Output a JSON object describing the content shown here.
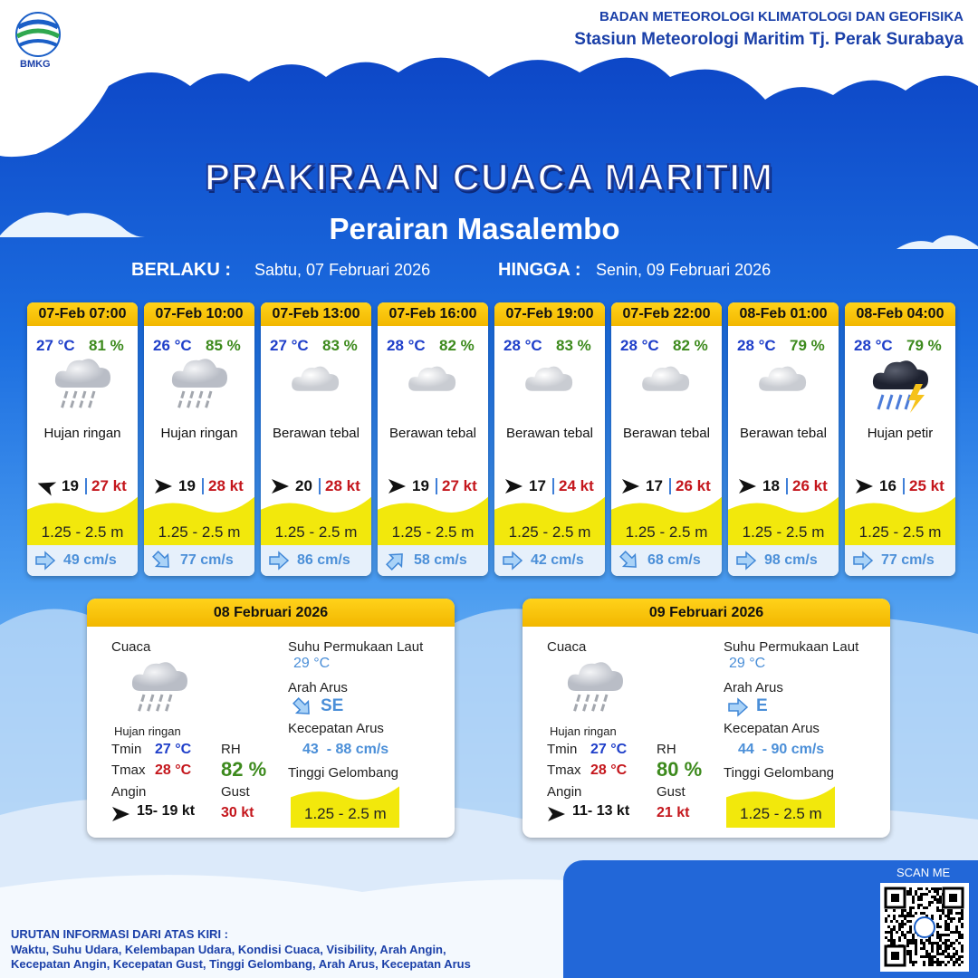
{
  "header": {
    "logo": "BMKG",
    "agency": "BADAN METEOROLOGI KLIMATOLOGI DAN GEOFISIKA",
    "station": "Stasiun Meteorologi Maritim Tj. Perak Surabaya"
  },
  "title": "PRAKIRAAN CUACA MARITIM",
  "subtitle": "Perairan Masalembo",
  "validity": {
    "from_label": "BERLAKU :",
    "from": "Sabtu, 07 Februari 2026",
    "to_label": "HINGGA :",
    "to": "Senin, 09 Februari 2026"
  },
  "forecasts": [
    {
      "time": "07-Feb 07:00",
      "temperature": "27 °C",
      "humidity": "81 %",
      "weather": "Hujan ringan",
      "wind": "19",
      "gust": "27 kt",
      "wave": "1.25 - 2.5 m",
      "current": "49 cm/s"
    },
    {
      "time": "07-Feb 10:00",
      "temperature": "26 °C",
      "humidity": "85 %",
      "weather": "Hujan ringan",
      "wind": "19",
      "gust": "28 kt",
      "wave": "1.25 - 2.5 m",
      "current": "77 cm/s"
    },
    {
      "time": "07-Feb 13:00",
      "temperature": "27 °C",
      "humidity": "83 %",
      "weather": "Berawan tebal",
      "wind": "20",
      "gust": "28 kt",
      "wave": "1.25 - 2.5 m",
      "current": "86 cm/s"
    },
    {
      "time": "07-Feb 16:00",
      "temperature": "28 °C",
      "humidity": "82 %",
      "weather": "Berawan tebal",
      "wind": "19",
      "gust": "27 kt",
      "wave": "1.25 - 2.5 m",
      "current": "58 cm/s"
    },
    {
      "time": "07-Feb 19:00",
      "temperature": "28 °C",
      "humidity": "83 %",
      "weather": "Berawan tebal",
      "wind": "17",
      "gust": "24 kt",
      "wave": "1.25 - 2.5 m",
      "current": "42 cm/s"
    },
    {
      "time": "07-Feb 22:00",
      "temperature": "28 °C",
      "humidity": "82 %",
      "weather": "Berawan tebal",
      "wind": "17",
      "gust": "26 kt",
      "wave": "1.25 - 2.5 m",
      "current": "68 cm/s"
    },
    {
      "time": "08-Feb 01:00",
      "temperature": "28 °C",
      "humidity": "79 %",
      "weather": "Berawan tebal",
      "wind": "18",
      "gust": "26 kt",
      "wave": "1.25 - 2.5 m",
      "current": "98 cm/s"
    },
    {
      "time": "08-Feb 04:00",
      "temperature": "28 °C",
      "humidity": "79 %",
      "weather": "Hujan petir",
      "wind": "16",
      "gust": "25 kt",
      "wave": "1.25 - 2.5 m",
      "current": "77 cm/s"
    }
  ],
  "daily": [
    {
      "date": "08 Februari 2026",
      "weather_label": "Cuaca",
      "weather": "Hujan ringan",
      "tmin_label": "Tmin",
      "tmin": "27 °C",
      "tmax_label": "Tmax",
      "tmax": "28 °C",
      "rh_label": "RH",
      "rh": "82 %",
      "wind_label": "Angin",
      "wind": "15- 19 kt",
      "gust_label": "Gust",
      "gust": "30 kt",
      "sst_label": "Suhu Permukaan Laut",
      "sst": "29 °C",
      "current_dir_label": "Arah Arus",
      "current_dir": "SE",
      "current_speed_label": "Kecepatan Arus",
      "current_speed": "43  - 88 cm/s",
      "wave_label": "Tinggi Gelombang",
      "wave": "1.25 - 2.5 m"
    },
    {
      "date": "09 Februari 2026",
      "weather_label": "Cuaca",
      "weather": "Hujan ringan",
      "tmin_label": "Tmin",
      "tmin": "27 °C",
      "tmax_label": "Tmax",
      "tmax": "28 °C",
      "rh_label": "RH",
      "rh": "80 %",
      "wind_label": "Angin",
      "wind": "11- 13 kt",
      "gust_label": "Gust",
      "gust": "21 kt",
      "sst_label": "Suhu Permukaan Laut",
      "sst": "29 °C",
      "current_dir_label": "Arah Arus",
      "current_dir": "E",
      "current_speed_label": "Kecepatan Arus",
      "current_speed": "44  - 90 cm/s",
      "wave_label": "Tinggi Gelombang",
      "wave": "1.25 - 2.5 m"
    }
  ],
  "qr_label": "SCAN ME",
  "footer": {
    "title": "URUTAN INFORMASI DARI ATAS KIRI :",
    "lines": [
      "Waktu, Suhu Udara, Kelembapan Udara, Kondisi Cuaca, Visibility, Arah Angin,",
      "Kecepatan Angin, Kecepatan Gust, Tinggi Gelombang, Arah Arus, Kecepatan Arus"
    ]
  }
}
